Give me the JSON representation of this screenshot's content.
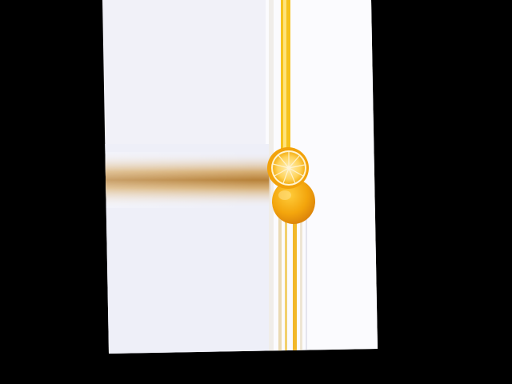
{
  "image": {
    "subject": "lemon-halves",
    "background_color": "#000000",
    "paper_color": "#F3F3FA",
    "paper_right_color": "#FCFCFE",
    "streak_color": "#C8904A",
    "lemon_rind_color": "#F2A20A",
    "lemon_pulp_color": "#FFD65A",
    "yellow_stripe_color": "#F6C21C"
  }
}
